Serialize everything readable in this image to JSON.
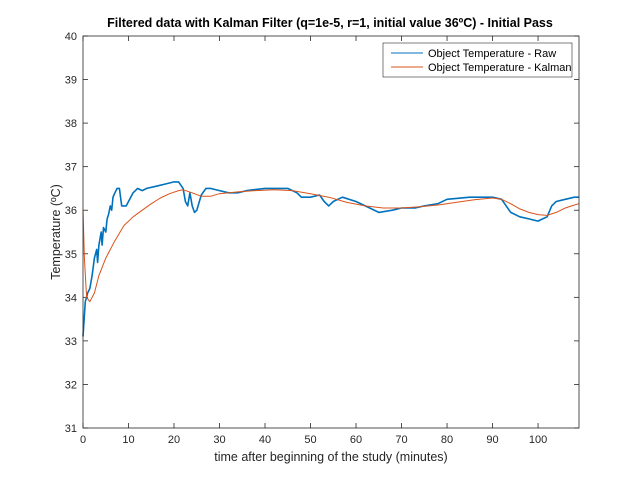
{
  "chart_data": {
    "type": "line",
    "title": "Filtered data with Kalman Filter (q=1e-5, r=1, initial value 36ºC) - Initial Pass",
    "xlabel": "time after beginning of the study (minutes)",
    "ylabel": "Temperature (ºC)",
    "xlim": [
      0,
      109
    ],
    "ylim": [
      31,
      40
    ],
    "xticks": [
      0,
      10,
      20,
      30,
      40,
      50,
      60,
      70,
      80,
      90,
      100
    ],
    "yticks": [
      31,
      32,
      33,
      34,
      35,
      36,
      37,
      38,
      39,
      40
    ],
    "grid": false,
    "legend_position": "top-right",
    "series": [
      {
        "name": "Object Temperature - Raw",
        "color": "#0072BD",
        "x": [
          0,
          0.5,
          0.8,
          1.0,
          1.5,
          2.0,
          2.5,
          3.0,
          3.2,
          3.5,
          4.0,
          4.2,
          4.5,
          5.0,
          5.3,
          5.6,
          6.0,
          6.3,
          6.6,
          7.0,
          7.5,
          8.0,
          8.5,
          9.0,
          9.5,
          10.0,
          11.0,
          12.0,
          13.0,
          14.0,
          16.0,
          18.0,
          20.0,
          21.0,
          22.0,
          22.5,
          23.0,
          23.5,
          24.0,
          24.5,
          25.0,
          26.0,
          27.0,
          28.0,
          30.0,
          32.0,
          34.0,
          36.0,
          40.0,
          45.0,
          47.0,
          48.0,
          50.0,
          52.0,
          53.0,
          54.0,
          55.0,
          57.0,
          60.0,
          63.0,
          65.0,
          68.0,
          70.0,
          73.0,
          75.0,
          78.0,
          80.0,
          85.0,
          90.0,
          92.0,
          93.0,
          94.0,
          96.0,
          98.0,
          100.0,
          101.0,
          102.0,
          103.0,
          104.0,
          106.0,
          108.0,
          109.0
        ],
        "y": [
          33.1,
          33.9,
          34.0,
          34.1,
          34.2,
          34.5,
          34.9,
          35.1,
          34.8,
          35.2,
          35.5,
          35.2,
          35.6,
          35.5,
          35.8,
          35.9,
          36.1,
          36.0,
          36.3,
          36.4,
          36.5,
          36.5,
          36.1,
          36.1,
          36.1,
          36.2,
          36.4,
          36.5,
          36.45,
          36.5,
          36.55,
          36.6,
          36.65,
          36.65,
          36.5,
          36.2,
          36.1,
          36.4,
          36.1,
          35.95,
          36.0,
          36.35,
          36.5,
          36.5,
          36.45,
          36.4,
          36.4,
          36.45,
          36.5,
          36.5,
          36.4,
          36.3,
          36.3,
          36.35,
          36.2,
          36.1,
          36.2,
          36.3,
          36.2,
          36.05,
          35.95,
          36.0,
          36.05,
          36.05,
          36.1,
          36.15,
          36.25,
          36.3,
          36.3,
          36.25,
          36.1,
          35.95,
          35.85,
          35.8,
          35.75,
          35.8,
          35.85,
          36.1,
          36.2,
          36.25,
          36.3,
          36.3
        ]
      },
      {
        "name": "Object Temperature - Kalman",
        "color": "#D95319",
        "x": [
          0,
          0.3,
          0.8,
          1.5,
          2.5,
          3.5,
          5.0,
          7.0,
          9.0,
          11.0,
          13.0,
          15.0,
          17.0,
          19.0,
          21.0,
          22.0,
          24.0,
          26.0,
          28.0,
          30.0,
          34.0,
          38.0,
          42.0,
          46.0,
          50.0,
          54.0,
          58.0,
          62.0,
          66.0,
          70.0,
          74.0,
          78.0,
          82.0,
          86.0,
          90.0,
          92.0,
          94.0,
          96.0,
          98.0,
          100.0,
          102.0,
          104.0,
          106.0,
          108.0,
          109.0
        ],
        "y": [
          36.0,
          34.9,
          34.0,
          33.9,
          34.1,
          34.5,
          34.9,
          35.3,
          35.65,
          35.85,
          36.0,
          36.15,
          36.28,
          36.38,
          36.45,
          36.47,
          36.4,
          36.32,
          36.32,
          36.38,
          36.42,
          36.45,
          36.47,
          36.45,
          36.38,
          36.3,
          36.18,
          36.1,
          36.05,
          36.05,
          36.08,
          36.12,
          36.18,
          36.24,
          36.28,
          36.25,
          36.15,
          36.03,
          35.95,
          35.9,
          35.88,
          35.95,
          36.05,
          36.12,
          36.15
        ]
      }
    ]
  }
}
